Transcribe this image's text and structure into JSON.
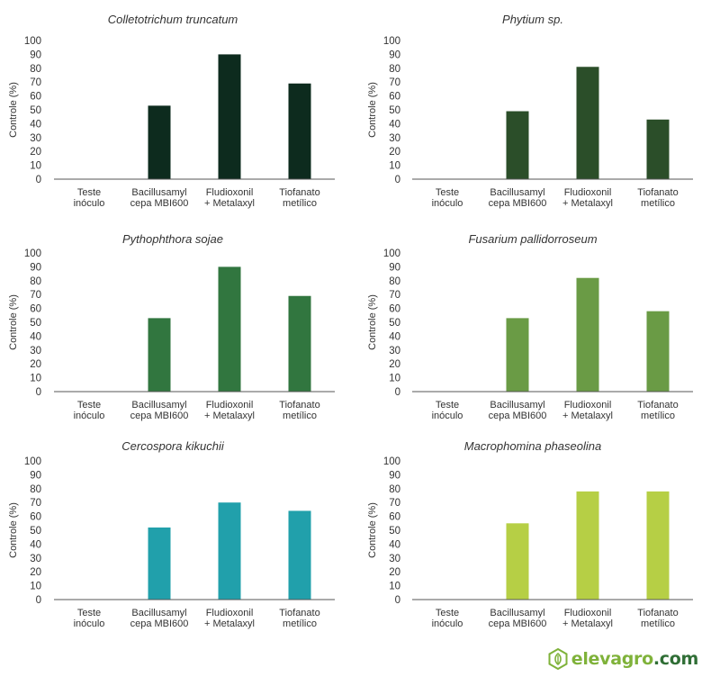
{
  "chart_data": [
    {
      "type": "bar",
      "title": "Colletotrichum truncatum",
      "ylabel": "Controle (%)",
      "ylim": [
        0,
        100
      ],
      "yticks": [
        0,
        10,
        20,
        30,
        40,
        50,
        60,
        70,
        80,
        90,
        100
      ],
      "categories": [
        [
          "Teste",
          "inóculo"
        ],
        [
          "Bacillusamyl",
          "cepa MBI600"
        ],
        [
          "Fludioxonil",
          "+ Metalaxyl"
        ],
        [
          "Tiofanato",
          "metílico"
        ]
      ],
      "values": [
        0,
        53,
        90,
        69
      ],
      "color": "#0d2b1e"
    },
    {
      "type": "bar",
      "title": "Phytium sp.",
      "ylabel": "Controle (%)",
      "ylim": [
        0,
        100
      ],
      "yticks": [
        0,
        10,
        20,
        30,
        40,
        50,
        60,
        70,
        80,
        90,
        100
      ],
      "categories": [
        [
          "Teste",
          "inóculo"
        ],
        [
          "Bacillusamyl",
          "cepa MBI600"
        ],
        [
          "Fludioxonil",
          "+ Metalaxyl"
        ],
        [
          "Tiofanato",
          "metílico"
        ]
      ],
      "values": [
        0,
        49,
        81,
        43
      ],
      "color": "#2b4e29"
    },
    {
      "type": "bar",
      "title": "Pythophthora sojae",
      "ylabel": "Controle (%)",
      "ylim": [
        0,
        100
      ],
      "yticks": [
        0,
        10,
        20,
        30,
        40,
        50,
        60,
        70,
        80,
        90,
        100
      ],
      "categories": [
        [
          "Teste",
          "inóculo"
        ],
        [
          "Bacillusamyl",
          "cepa MBI600"
        ],
        [
          "Fludioxonil",
          "+ Metalaxyl"
        ],
        [
          "Tiofanato",
          "metílico"
        ]
      ],
      "values": [
        0,
        53,
        90,
        69
      ],
      "color": "#31763f"
    },
    {
      "type": "bar",
      "title": "Fusarium pallidorroseum",
      "ylabel": "Controle (%)",
      "ylim": [
        0,
        100
      ],
      "yticks": [
        0,
        10,
        20,
        30,
        40,
        50,
        60,
        70,
        80,
        90,
        100
      ],
      "categories": [
        [
          "Teste",
          "inóculo"
        ],
        [
          "Bacillusamyl",
          "cepa MBI600"
        ],
        [
          "Fludioxonil",
          "+ Metalaxyl"
        ],
        [
          "Tiofanato",
          "metílico"
        ]
      ],
      "values": [
        0,
        53,
        82,
        58
      ],
      "color": "#6a9b45"
    },
    {
      "type": "bar",
      "title": "Cercospora kikuchii",
      "ylabel": "Controle (%)",
      "ylim": [
        0,
        100
      ],
      "yticks": [
        0,
        10,
        20,
        30,
        40,
        50,
        60,
        70,
        80,
        90,
        100
      ],
      "categories": [
        [
          "Teste",
          "inóculo"
        ],
        [
          "Bacillusamyl",
          "cepa MBI600"
        ],
        [
          "Fludioxonil",
          "+ Metalaxyl"
        ],
        [
          "Tiofanato",
          "metílico"
        ]
      ],
      "values": [
        0,
        52,
        70,
        64
      ],
      "color": "#21a0ab"
    },
    {
      "type": "bar",
      "title": "Macrophomina phaseolina",
      "ylabel": "Controle (%)",
      "ylim": [
        0,
        100
      ],
      "yticks": [
        0,
        10,
        20,
        30,
        40,
        50,
        60,
        70,
        80,
        90,
        100
      ],
      "categories": [
        [
          "Teste",
          "inóculo"
        ],
        [
          "Bacillusamyl",
          "cepa MBI600"
        ],
        [
          "Fludioxonil",
          "+ Metalaxyl"
        ],
        [
          "Tiofanato",
          "metílico"
        ]
      ],
      "values": [
        0,
        55,
        78,
        78
      ],
      "color": "#b6cf45"
    }
  ],
  "logo": {
    "text_main": "elevagro",
    "text_suffix": ".com",
    "icon": "leaf-hexagon-icon",
    "color": "#7fb23a",
    "accent": "#2f6e35"
  }
}
